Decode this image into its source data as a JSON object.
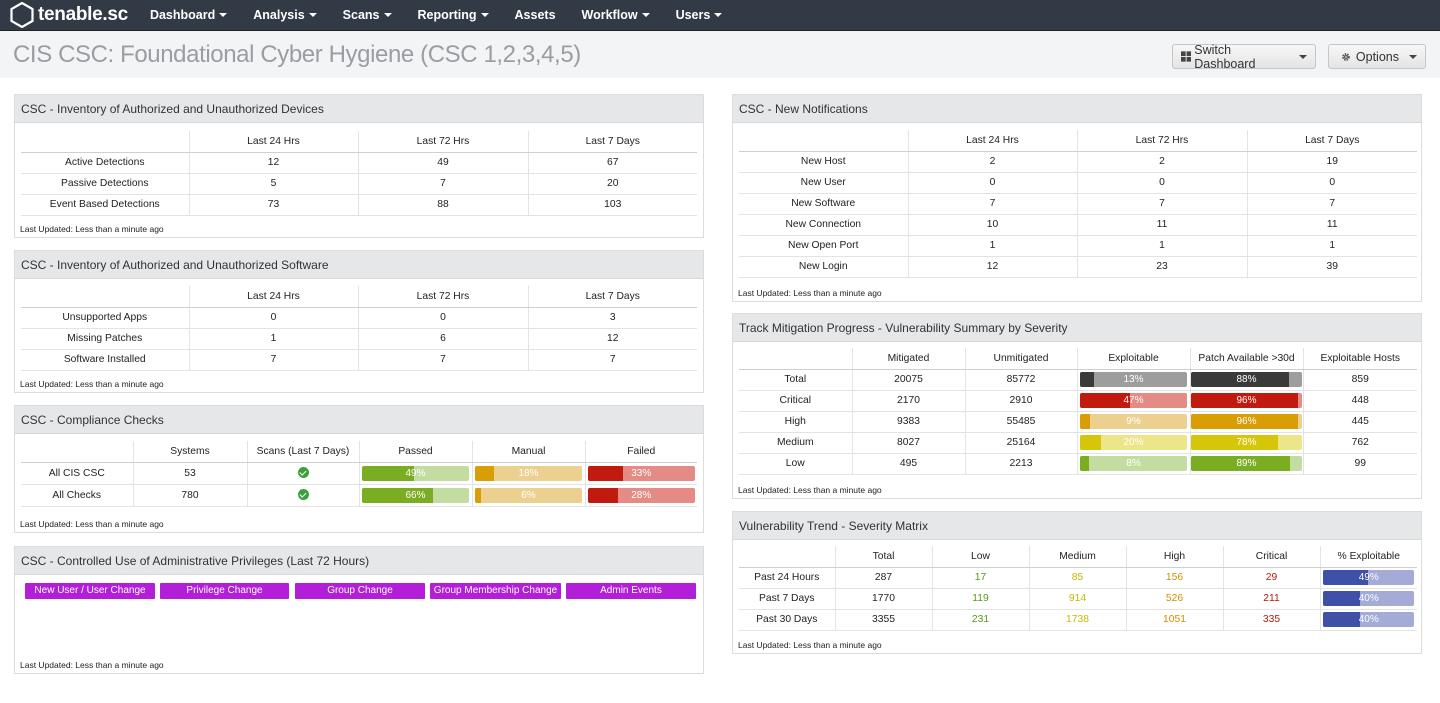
{
  "nav": {
    "logo": "tenable.sc",
    "items": [
      {
        "label": "Dashboard"
      },
      {
        "label": "Analysis"
      },
      {
        "label": "Scans"
      },
      {
        "label": "Reporting"
      },
      {
        "label": "Assets"
      },
      {
        "label": "Workflow"
      },
      {
        "label": "Users"
      }
    ]
  },
  "page": {
    "title": "CIS CSC: Foundational Cyber Hygiene (CSC 1,2,3,4,5)",
    "switch_dashboard": "Switch Dashboard",
    "options": "Options"
  },
  "last_updated": "Last Updated: Less than a minute ago",
  "devices": {
    "title": "CSC - Inventory of Authorized and Unauthorized Devices",
    "columns": [
      "",
      "Last 24 Hrs",
      "Last 72 Hrs",
      "Last 7 Days"
    ],
    "rows": [
      [
        "Active Detections",
        "12",
        "49",
        "67"
      ],
      [
        "Passive Detections",
        "5",
        "7",
        "20"
      ],
      [
        "Event Based Detections",
        "73",
        "88",
        "103"
      ]
    ]
  },
  "software": {
    "title": "CSC - Inventory of Authorized and Unauthorized Software",
    "columns": [
      "",
      "Last 24 Hrs",
      "Last 72 Hrs",
      "Last 7 Days"
    ],
    "rows": [
      [
        "Unsupported Apps",
        "0",
        "0",
        "3"
      ],
      [
        "Missing Patches",
        "1",
        "6",
        "12"
      ],
      [
        "Software Installed",
        "7",
        "7",
        "7"
      ]
    ]
  },
  "compliance": {
    "title": "CSC - Compliance Checks",
    "columns": [
      "",
      "Systems",
      "Scans (Last 7 Days)",
      "Passed",
      "Manual",
      "Failed"
    ],
    "rows": [
      {
        "name": "All CIS CSC",
        "systems": "53",
        "passed": 49,
        "passed_label": "49%",
        "manual": 18,
        "manual_label": "18%",
        "failed": 33,
        "failed_label": "33%"
      },
      {
        "name": "All Checks",
        "systems": "780",
        "passed": 66,
        "passed_label": "66%",
        "manual": 6,
        "manual_label": "6%",
        "failed": 28,
        "failed_label": "28%"
      }
    ],
    "colors": {
      "passed": [
        "#7bad22",
        "#c3dca0"
      ],
      "manual": [
        "#d99d06",
        "#ecd08f"
      ],
      "failed": [
        "#c11a0e",
        "#e48b86"
      ]
    }
  },
  "admin": {
    "title": "CSC - Controlled Use of Administrative Privileges (Last 72 Hours)",
    "buttons": [
      "New User / User Change",
      "Privilege Change",
      "Group Change",
      "Group Membership Change",
      "Admin Events"
    ]
  },
  "notifications": {
    "title": "CSC - New Notifications",
    "columns": [
      "",
      "Last 24 Hrs",
      "Last 72 Hrs",
      "Last 7 Days"
    ],
    "rows": [
      [
        "New Host",
        "2",
        "2",
        "19"
      ],
      [
        "New User",
        "0",
        "0",
        "0"
      ],
      [
        "New Software",
        "7",
        "7",
        "7"
      ],
      [
        "New Connection",
        "10",
        "11",
        "11"
      ],
      [
        "New Open Port",
        "1",
        "1",
        "1"
      ],
      [
        "New Login",
        "12",
        "23",
        "39"
      ]
    ]
  },
  "mitigation": {
    "title": "Track Mitigation Progress - Vulnerability Summary by Severity",
    "columns": [
      "",
      "Mitigated",
      "Unmitigated",
      "Exploitable",
      "Patch Available >30d",
      "Exploitable Hosts"
    ],
    "rows": [
      {
        "name": "Total",
        "mitigated": "20075",
        "unmitigated": "85772",
        "exploitable": 13,
        "exploitable_label": "13%",
        "patch": 88,
        "patch_label": "88%",
        "hosts": "859",
        "colors": [
          "#3a3a3a",
          "#9d9d9d"
        ]
      },
      {
        "name": "Critical",
        "mitigated": "2170",
        "unmitigated": "2910",
        "exploitable": 47,
        "exploitable_label": "47%",
        "patch": 96,
        "patch_label": "96%",
        "hosts": "448",
        "colors": [
          "#c11a0e",
          "#e48b86"
        ]
      },
      {
        "name": "High",
        "mitigated": "9383",
        "unmitigated": "55485",
        "exploitable": 9,
        "exploitable_label": "9%",
        "patch": 96,
        "patch_label": "96%",
        "hosts": "445",
        "colors": [
          "#d99d06",
          "#ecd08f"
        ]
      },
      {
        "name": "Medium",
        "mitigated": "8027",
        "unmitigated": "25164",
        "exploitable": 20,
        "exploitable_label": "20%",
        "patch": 78,
        "patch_label": "78%",
        "hosts": "762",
        "colors": [
          "#d6c60a",
          "#ece589"
        ]
      },
      {
        "name": "Low",
        "mitigated": "495",
        "unmitigated": "2213",
        "exploitable": 8,
        "exploitable_label": "8%",
        "patch": 89,
        "patch_label": "89%",
        "hosts": "99",
        "colors": [
          "#7bad22",
          "#c3dca0"
        ]
      }
    ]
  },
  "trend": {
    "title": "Vulnerability Trend - Severity Matrix",
    "columns": [
      "",
      "Total",
      "Low",
      "Medium",
      "High",
      "Critical",
      "% Exploitable"
    ],
    "rows": [
      {
        "name": "Past 24 Hours",
        "total": "287",
        "low": "17",
        "medium": "85",
        "high": "156",
        "critical": "29",
        "pct": 49,
        "pct_label": "49%"
      },
      {
        "name": "Past 7 Days",
        "total": "1770",
        "low": "119",
        "medium": "914",
        "high": "526",
        "critical": "211",
        "pct": 40,
        "pct_label": "40%"
      },
      {
        "name": "Past 30 Days",
        "total": "3355",
        "low": "231",
        "medium": "1738",
        "high": "1051",
        "critical": "335",
        "pct": 40,
        "pct_label": "40%"
      }
    ],
    "text_colors": {
      "low": "#5b9a14",
      "medium": "#c9b800",
      "high": "#d18e00",
      "critical": "#b8180c"
    },
    "bar_colors": [
      "#3e50a8",
      "#a3abd6"
    ]
  },
  "icons": {
    "logo": "tenable-hexagon-icon",
    "grid": "grid-icon",
    "gear": "gear-icon",
    "check": "check-circle-icon"
  }
}
